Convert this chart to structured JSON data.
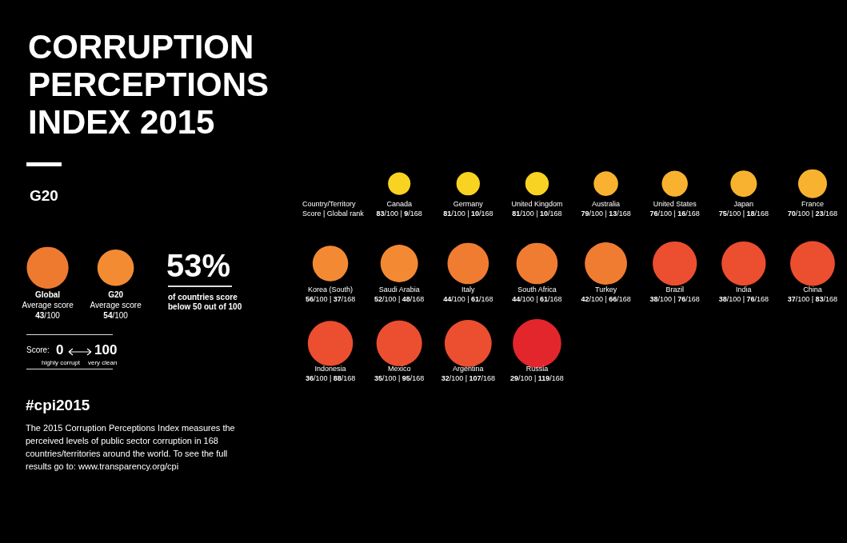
{
  "chart_data": [
    {
      "type": "other",
      "title": "CORRUPTION PERCEPTIONS INDEX 2015",
      "subtitle": "G20",
      "categories": [
        "Global",
        "G20"
      ],
      "values": [
        43,
        54
      ],
      "value_labels": [
        "43/100",
        "54/100"
      ],
      "colors": [
        "#ee7a30",
        "#f38b33"
      ],
      "annotations": [
        {
          "text": "Average score",
          "x": "Global"
        },
        {
          "text": "Average score",
          "x": "G20"
        },
        "53%",
        "of countries score below 50 out of 100",
        "Score:",
        "0",
        "100",
        "highly corrupt",
        "very clean",
        "#cpi2015",
        "The 2015 Corruption Perceptions Index measures the perceived levels of public sector corruption in 168 countries/territories around the world. To see the full results go to: www.transparency.org/cpi"
      ]
    },
    {
      "type": "other",
      "categories": [
        "Canada",
        "Germany",
        "United Kingdom",
        "Australia",
        "United States",
        "Japan",
        "France",
        "Korea (South)",
        "Saudi Arabia",
        "Italy",
        "South Africa",
        "Turkey",
        "Brazil",
        "India",
        "China",
        "Indonesia",
        "Mexico",
        "Argentina",
        "Russia"
      ],
      "values": [
        83,
        81,
        81,
        79,
        76,
        75,
        70,
        56,
        52,
        44,
        44,
        42,
        38,
        38,
        37,
        36,
        35,
        32,
        29
      ],
      "value_labels": [
        "83/100 | 9/168",
        "81/100 | 10/168",
        "81/100 | 10/168",
        "79/100 | 13/168",
        "76/100 | 16/168",
        "75/100 | 18/168",
        "70/100 | 23/168",
        "56/100 | 37/168",
        "52/100 | 48/168",
        "44/100 | 61/168",
        "44/100 | 61/168",
        "42/100 | 66/168",
        "38/100 | 76/168",
        "38/100 | 76/168",
        "37/100 | 83/168",
        "36/100 | 88/168",
        "35/100 | 95/168",
        "32/100 | 107/168",
        "29/100 | 119/168"
      ],
      "colors": [
        "#f8d321",
        "#f8d321",
        "#f8d321",
        "#f9b230",
        "#f9b230",
        "#f9b230",
        "#f9b230",
        "#f38a33",
        "#f38a33",
        "#f07c32",
        "#f07c32",
        "#f07c32",
        "#ec4e30",
        "#ec4e30",
        "#ec4e30",
        "#ec4e30",
        "#ec4e30",
        "#ec4e30",
        "#e3262b"
      ],
      "annotations": [
        "Country/Territory",
        "Score | Global rank"
      ]
    }
  ]
}
